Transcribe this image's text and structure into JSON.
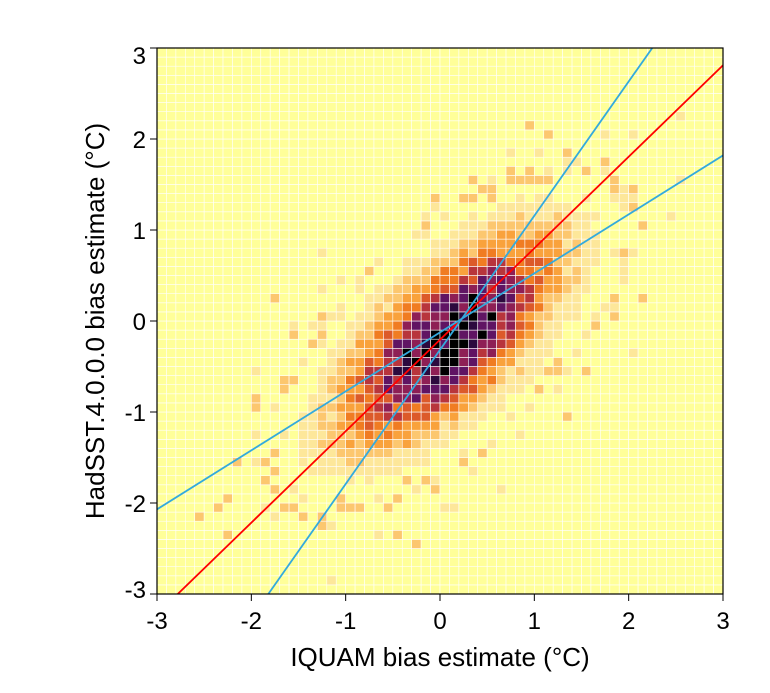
{
  "chart_data": {
    "type": "heatmap",
    "title": "",
    "xlabel": "IQUAM bias estimate (°C)",
    "ylabel": "HadSST.4.0.0.0 bias estimate (°C)",
    "xlim": [
      -3,
      3
    ],
    "ylim": [
      -3,
      3
    ],
    "x_ticks": [
      "-3",
      "-2",
      "-1",
      "0",
      "1",
      "2",
      "3"
    ],
    "y_ticks": [
      "-3",
      "-2",
      "-1",
      "0",
      "1",
      "2",
      "3"
    ],
    "grid": false,
    "bin_size": 0.1,
    "density_peak": [
      0.1,
      -0.2
    ],
    "colormap": [
      "#ffff99",
      "#fde79a",
      "#fcc76f",
      "#f9a23c",
      "#f07c22",
      "#dc5a2a",
      "#b8353c",
      "#8e1f55",
      "#601463",
      "#2c0a3e",
      "#000000"
    ],
    "background_color": "#ffff99",
    "lines": [
      {
        "color": "#ff0000",
        "points": [
          [
            -2.78,
            -3.0
          ],
          [
            3.0,
            2.81
          ]
        ]
      },
      {
        "color": "#33aadd",
        "points": [
          [
            -3.0,
            -2.07
          ],
          [
            3.0,
            1.82
          ]
        ]
      },
      {
        "color": "#33aadd",
        "points": [
          [
            -1.82,
            -3.0
          ],
          [
            2.25,
            3.0
          ]
        ]
      }
    ]
  }
}
